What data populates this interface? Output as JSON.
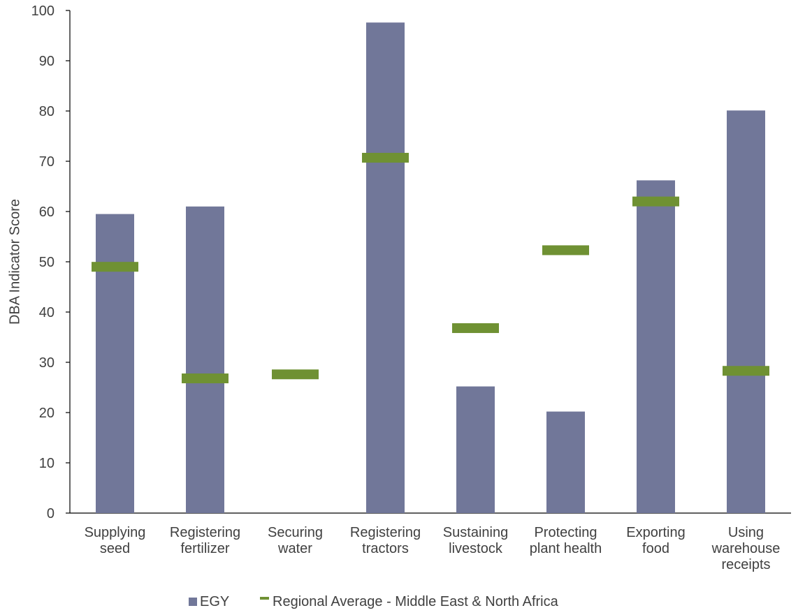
{
  "chart_data": {
    "type": "bar",
    "title": "",
    "xlabel": "",
    "ylabel": "DBA Indicator Score",
    "ylim": [
      0,
      100
    ],
    "yticks": [
      0,
      10,
      20,
      30,
      40,
      50,
      60,
      70,
      80,
      90,
      100
    ],
    "grid": false,
    "legend_position": "bottom",
    "categories": [
      [
        "Supplying",
        "seed"
      ],
      [
        "Registering",
        "fertilizer"
      ],
      [
        "Securing",
        "water"
      ],
      [
        "Registering",
        "tractors"
      ],
      [
        "Sustaining",
        "livestock"
      ],
      [
        "Protecting",
        "plant health"
      ],
      [
        "Exporting",
        "food"
      ],
      [
        "Using",
        "warehouse",
        "receipts"
      ]
    ],
    "series": [
      {
        "name": "EGY",
        "type": "bar",
        "color": "#717799",
        "values": [
          59.5,
          61.0,
          null,
          97.6,
          25.2,
          20.2,
          66.2,
          80.1
        ]
      },
      {
        "name": "Regional Average - Middle East & North Africa",
        "type": "marker-dash",
        "color": "#6f9133",
        "values": [
          49.0,
          26.8,
          27.6,
          70.7,
          36.8,
          52.3,
          62.0,
          28.3
        ]
      }
    ]
  }
}
